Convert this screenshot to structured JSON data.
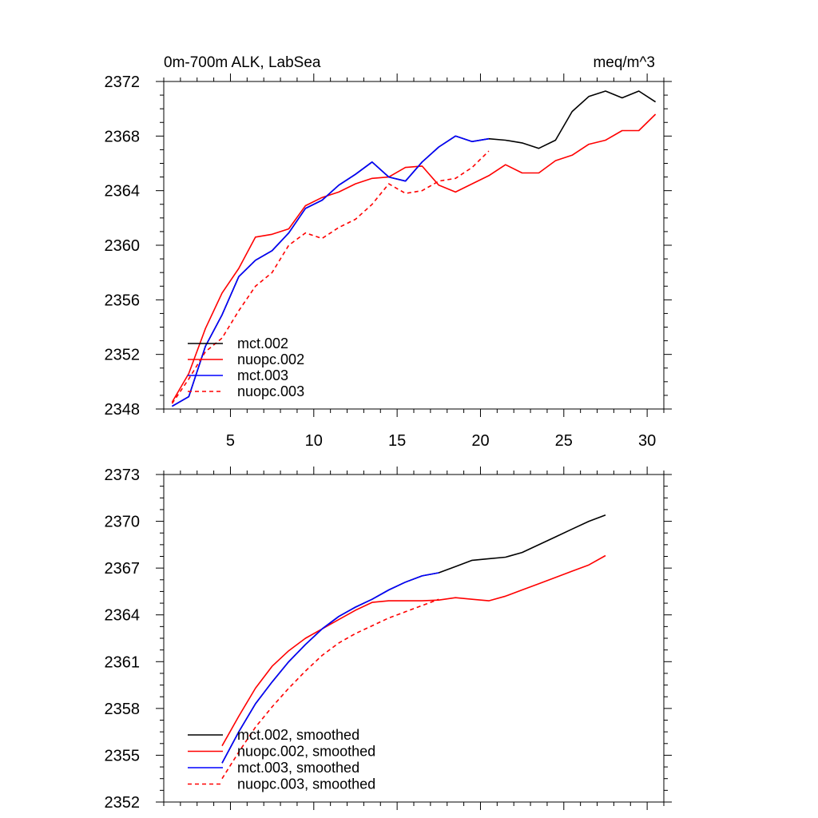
{
  "chart_data": [
    {
      "type": "line",
      "title_left": "0m-700m ALK, LabSea",
      "title_right": "meq/m^3",
      "xlim": [
        1,
        31
      ],
      "ylim": [
        2348,
        2372
      ],
      "x_ticks": [
        5,
        10,
        15,
        20,
        25,
        30
      ],
      "y_ticks": [
        2348,
        2352,
        2356,
        2360,
        2364,
        2368,
        2372
      ],
      "show_x_tick_labels": true,
      "legend_position": "lower-left",
      "series": [
        {
          "name": "mct.002",
          "color": "#000000",
          "dash": "solid",
          "x": [
            1.5,
            2.5,
            3.5,
            4.5,
            5.5,
            6.5,
            7.5,
            8.5,
            9.5,
            10.5,
            11.5,
            12.5,
            13.5,
            14.5,
            15.5,
            16.5,
            17.5,
            18.5,
            19.5,
            20.5,
            21.5,
            22.5,
            23.5,
            24.5,
            25.5,
            26.5,
            27.5,
            28.5,
            29.5,
            30.5
          ],
          "y": [
            2348.2,
            2348.9,
            2352.6,
            2354.9,
            2357.7,
            2358.9,
            2359.6,
            2360.9,
            2362.7,
            2363.3,
            2364.4,
            2365.2,
            2366.1,
            2365.0,
            2364.7,
            2366.1,
            2367.2,
            2368.0,
            2367.6,
            2367.8,
            2367.7,
            2367.5,
            2367.1,
            2367.7,
            2369.8,
            2370.9,
            2371.3,
            2370.8,
            2371.3,
            2370.5
          ]
        },
        {
          "name": "nuopc.002",
          "color": "#ff0000",
          "dash": "solid",
          "x": [
            1.5,
            2.5,
            3.5,
            4.5,
            5.5,
            6.5,
            7.5,
            8.5,
            9.5,
            10.5,
            11.5,
            12.5,
            13.5,
            14.5,
            15.5,
            16.5,
            17.5,
            18.5,
            19.5,
            20.5,
            21.5,
            22.5,
            23.5,
            24.5,
            25.5,
            26.5,
            27.5,
            28.5,
            29.5,
            30.5
          ],
          "y": [
            2348.5,
            2350.6,
            2353.9,
            2356.5,
            2358.3,
            2360.6,
            2360.8,
            2361.2,
            2362.9,
            2363.5,
            2363.9,
            2364.5,
            2364.9,
            2365.0,
            2365.7,
            2365.8,
            2364.4,
            2363.9,
            2364.5,
            2365.1,
            2365.9,
            2365.3,
            2365.3,
            2366.2,
            2366.6,
            2367.4,
            2367.7,
            2368.4,
            2368.4,
            2369.6
          ]
        },
        {
          "name": "mct.003",
          "color": "#0000ff",
          "dash": "solid",
          "x": [
            1.5,
            2.5,
            3.5,
            4.5,
            5.5,
            6.5,
            7.5,
            8.5,
            9.5,
            10.5,
            11.5,
            12.5,
            13.5,
            14.5,
            15.5,
            16.5,
            17.5,
            18.5,
            19.5,
            20.5
          ],
          "y": [
            2348.2,
            2348.9,
            2352.6,
            2354.9,
            2357.7,
            2358.9,
            2359.6,
            2360.9,
            2362.7,
            2363.3,
            2364.4,
            2365.2,
            2366.1,
            2365.0,
            2364.7,
            2366.1,
            2367.2,
            2368.0,
            2367.6,
            2367.8
          ]
        },
        {
          "name": "nuopc.003",
          "color": "#ff0000",
          "dash": "dashed",
          "x": [
            1.5,
            2.5,
            3.5,
            4.5,
            5.5,
            6.5,
            7.5,
            8.5,
            9.5,
            10.5,
            11.5,
            12.5,
            13.5,
            14.5,
            15.5,
            16.5,
            17.5,
            18.5,
            19.5,
            20.5
          ],
          "y": [
            2348.4,
            2350.2,
            2352.2,
            2353.2,
            2355.2,
            2357.0,
            2358.0,
            2360.0,
            2360.9,
            2360.5,
            2361.3,
            2361.9,
            2363.0,
            2364.5,
            2363.8,
            2364.0,
            2364.7,
            2364.9,
            2365.7,
            2366.9
          ]
        }
      ]
    },
    {
      "type": "line",
      "title_left": "",
      "title_right": "",
      "xlim": [
        1,
        31
      ],
      "ylim": [
        2352,
        2373
      ],
      "x_ticks": [
        5,
        10,
        15,
        20,
        25,
        30
      ],
      "y_ticks": [
        2352,
        2355,
        2358,
        2361,
        2364,
        2367,
        2370,
        2373
      ],
      "show_x_tick_labels": false,
      "legend_position": "lower-left",
      "series": [
        {
          "name": "mct.002, smoothed",
          "color": "#000000",
          "dash": "solid",
          "x": [
            4.5,
            5.5,
            6.5,
            7.5,
            8.5,
            9.5,
            10.5,
            11.5,
            12.5,
            13.5,
            14.5,
            15.5,
            16.5,
            17.5,
            18.5,
            19.5,
            20.5,
            21.5,
            22.5,
            23.5,
            24.5,
            25.5,
            26.5,
            27.5
          ],
          "y": [
            2354.5,
            2356.5,
            2358.3,
            2359.7,
            2361.0,
            2362.1,
            2363.1,
            2363.9,
            2364.5,
            2365.0,
            2365.6,
            2366.1,
            2366.5,
            2366.7,
            2367.1,
            2367.5,
            2367.6,
            2367.7,
            2368.0,
            2368.5,
            2369.0,
            2369.5,
            2370.0,
            2370.4
          ]
        },
        {
          "name": "nuopc.002, smoothed",
          "color": "#ff0000",
          "dash": "solid",
          "x": [
            4.5,
            5.5,
            6.5,
            7.5,
            8.5,
            9.5,
            10.5,
            11.5,
            12.5,
            13.5,
            14.5,
            15.5,
            16.5,
            17.5,
            18.5,
            19.5,
            20.5,
            21.5,
            22.5,
            23.5,
            24.5,
            25.5,
            26.5,
            27.5
          ],
          "y": [
            2355.6,
            2357.5,
            2359.3,
            2360.7,
            2361.7,
            2362.5,
            2363.1,
            2363.7,
            2364.3,
            2364.8,
            2364.9,
            2364.9,
            2364.9,
            2364.95,
            2365.1,
            2365.0,
            2364.9,
            2365.2,
            2365.6,
            2366.0,
            2366.4,
            2366.8,
            2367.2,
            2367.8
          ]
        },
        {
          "name": "mct.003, smoothed",
          "color": "#0000ff",
          "dash": "solid",
          "x": [
            4.5,
            5.5,
            6.5,
            7.5,
            8.5,
            9.5,
            10.5,
            11.5,
            12.5,
            13.5,
            14.5,
            15.5,
            16.5,
            17.5
          ],
          "y": [
            2354.5,
            2356.5,
            2358.3,
            2359.7,
            2361.0,
            2362.1,
            2363.1,
            2363.9,
            2364.5,
            2365.0,
            2365.6,
            2366.1,
            2366.5,
            2366.7
          ]
        },
        {
          "name": "nuopc.003, smoothed",
          "color": "#ff0000",
          "dash": "dashed",
          "x": [
            4.5,
            5.5,
            6.5,
            7.5,
            8.5,
            9.5,
            10.5,
            11.5,
            12.5,
            13.5,
            14.5,
            15.5,
            16.5,
            17.5
          ],
          "y": [
            2353.5,
            2355.2,
            2356.8,
            2358.1,
            2359.3,
            2360.4,
            2361.4,
            2362.2,
            2362.8,
            2363.3,
            2363.8,
            2364.2,
            2364.6,
            2365.0
          ]
        }
      ]
    }
  ]
}
